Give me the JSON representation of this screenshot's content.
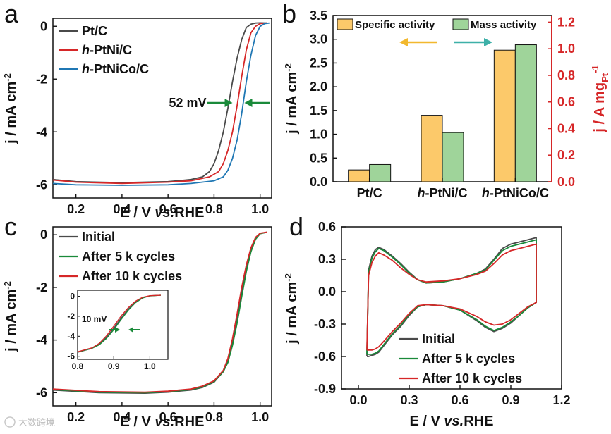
{
  "panel_labels": [
    "a",
    "b",
    "c",
    "d"
  ],
  "watermark": "大数跨境",
  "chart_data": [
    {
      "panel": "a",
      "type": "line",
      "xlabel": "E / V vs.RHE",
      "ylabel": "j / mA cm-2",
      "xlim": [
        0.1,
        1.05
      ],
      "ylim": [
        -6.5,
        0.3
      ],
      "xticks": [
        0.2,
        0.4,
        0.6,
        0.8,
        1.0
      ],
      "yticks": [
        0,
        -2,
        -4,
        -6
      ],
      "x_tick_labels": [
        "0.2",
        "0.4",
        "0.6",
        "0.8",
        "1.0"
      ],
      "y_tick_labels": [
        "0",
        "-2",
        "-4",
        "-6"
      ],
      "series": [
        {
          "name": "Pt/C",
          "legend_prefix": "",
          "legend_rest": "Pt/C",
          "color": "#4a4a4a",
          "x": [
            0.1,
            0.2,
            0.4,
            0.6,
            0.7,
            0.75,
            0.78,
            0.8,
            0.82,
            0.84,
            0.86,
            0.88,
            0.9,
            0.92,
            0.94,
            0.96,
            0.98,
            1.0,
            1.03
          ],
          "y": [
            -5.8,
            -5.88,
            -5.92,
            -5.88,
            -5.8,
            -5.7,
            -5.5,
            -5.2,
            -4.7,
            -4.0,
            -3.1,
            -2.1,
            -1.2,
            -0.5,
            -0.05,
            0.08,
            0.12,
            0.13,
            0.12
          ]
        },
        {
          "name": "h-PtNi/C",
          "legend_prefix": "h",
          "legend_rest": "-PtNi/C",
          "color": "#d62728",
          "x": [
            0.1,
            0.2,
            0.4,
            0.6,
            0.7,
            0.78,
            0.82,
            0.84,
            0.86,
            0.88,
            0.9,
            0.92,
            0.94,
            0.96,
            0.98,
            1.0,
            1.03
          ],
          "y": [
            -5.82,
            -5.9,
            -5.95,
            -5.9,
            -5.85,
            -5.7,
            -5.5,
            -5.2,
            -4.7,
            -4.0,
            -3.0,
            -1.9,
            -0.9,
            -0.25,
            0.0,
            0.1,
            0.12
          ]
        },
        {
          "name": "h-PtNiCo/C",
          "legend_prefix": "h",
          "legend_rest": "-PtNiCo/C",
          "color": "#1f77b4",
          "x": [
            0.1,
            0.2,
            0.4,
            0.6,
            0.7,
            0.8,
            0.84,
            0.86,
            0.88,
            0.9,
            0.92,
            0.94,
            0.96,
            0.98,
            1.0,
            1.02,
            1.04
          ],
          "y": [
            -5.95,
            -6.0,
            -6.02,
            -6.0,
            -5.95,
            -5.85,
            -5.7,
            -5.45,
            -5.0,
            -4.3,
            -3.3,
            -2.1,
            -1.1,
            -0.35,
            0.0,
            0.1,
            0.12
          ]
        }
      ],
      "annotation": {
        "text": "52 mV",
        "x1": 0.88,
        "x2": 0.932,
        "y": -2.9,
        "color": "#1a8a3a"
      }
    },
    {
      "panel": "b",
      "type": "bar",
      "categories": [
        "Pt/C",
        "h-PtNi/C",
        "h-PtNiCo/C"
      ],
      "category_labels": [
        {
          "prefix": "",
          "rest": "Pt/C"
        },
        {
          "prefix": "h",
          "rest": "-PtNi/C"
        },
        {
          "prefix": "h",
          "rest": "-PtNiCo/C"
        }
      ],
      "ylabel_left": "j / mA cm-2",
      "ylabel_right": "j / A mgPt-1",
      "ylim_left": [
        0,
        3.5
      ],
      "ylim_right": [
        0,
        1.25
      ],
      "yticks_left": [
        0.0,
        0.5,
        1.0,
        1.5,
        2.0,
        2.5,
        3.0,
        3.5
      ],
      "yticks_right": [
        0.0,
        0.2,
        0.4,
        0.6,
        0.8,
        1.0,
        1.2
      ],
      "y_tick_labels_left": [
        "0.0",
        "0.5",
        "1.0",
        "1.5",
        "2.0",
        "2.5",
        "3.0",
        "3.5"
      ],
      "y_tick_labels_right": [
        "0.0",
        "0.2",
        "0.4",
        "0.6",
        "0.8",
        "1.0",
        "1.2"
      ],
      "series": [
        {
          "name": "Specific activity",
          "axis": "left",
          "color": "#fcc96a",
          "values": [
            0.25,
            1.4,
            2.77
          ]
        },
        {
          "name": "Mass activity",
          "axis": "right",
          "color": "#9fd49a",
          "values": [
            0.13,
            0.37,
            1.03
          ]
        }
      ],
      "right_axis_color": "#d62728"
    },
    {
      "panel": "c",
      "type": "line",
      "xlabel": "E / V vs.RHE",
      "ylabel": "j / mA cm-2",
      "xlim": [
        0.1,
        1.05
      ],
      "ylim": [
        -6.5,
        0.3
      ],
      "xticks": [
        0.2,
        0.4,
        0.6,
        0.8,
        1.0
      ],
      "yticks": [
        0,
        -2,
        -4,
        -6
      ],
      "x_tick_labels": [
        "0.2",
        "0.4",
        "0.6",
        "0.8",
        "1.0"
      ],
      "y_tick_labels": [
        "0",
        "-2",
        "-4",
        "-6"
      ],
      "series": [
        {
          "name": "Initial",
          "color": "#4a4a4a",
          "x": [
            0.1,
            0.3,
            0.5,
            0.6,
            0.7,
            0.75,
            0.8,
            0.84,
            0.86,
            0.88,
            0.9,
            0.92,
            0.94,
            0.96,
            0.98,
            1.0,
            1.03
          ],
          "y": [
            -5.9,
            -6.0,
            -6.02,
            -5.98,
            -5.9,
            -5.8,
            -5.6,
            -5.2,
            -4.8,
            -4.1,
            -3.2,
            -2.2,
            -1.3,
            -0.6,
            -0.15,
            0.05,
            0.1
          ]
        },
        {
          "name": "After 5 k cycles",
          "color": "#1a8a3a",
          "x": [
            0.1,
            0.3,
            0.5,
            0.6,
            0.7,
            0.75,
            0.8,
            0.84,
            0.86,
            0.88,
            0.9,
            0.92,
            0.94,
            0.96,
            0.98,
            1.0,
            1.03
          ],
          "y": [
            -5.88,
            -5.98,
            -6.0,
            -5.96,
            -5.88,
            -5.78,
            -5.58,
            -5.2,
            -4.85,
            -4.2,
            -3.35,
            -2.35,
            -1.4,
            -0.65,
            -0.17,
            0.04,
            0.1
          ]
        },
        {
          "name": "After 10 k cycles",
          "color": "#d62728",
          "x": [
            0.1,
            0.3,
            0.5,
            0.6,
            0.7,
            0.75,
            0.8,
            0.84,
            0.86,
            0.88,
            0.9,
            0.92,
            0.94,
            0.96,
            0.98,
            1.0,
            1.03
          ],
          "y": [
            -5.86,
            -5.96,
            -5.98,
            -5.94,
            -5.86,
            -5.75,
            -5.55,
            -5.15,
            -4.7,
            -3.95,
            -3.0,
            -2.0,
            -1.15,
            -0.5,
            -0.1,
            0.06,
            0.1
          ]
        }
      ],
      "inset": {
        "xlim": [
          0.8,
          1.05
        ],
        "ylim": [
          -6.3,
          0.6
        ],
        "xticks": [
          0.8,
          0.9,
          1.0
        ],
        "yticks": [
          0,
          -2,
          -4,
          -6
        ],
        "x_tick_labels": [
          "0.8",
          "0.9",
          "1.0"
        ],
        "y_tick_labels": [
          "0",
          "-2",
          "-4",
          "-6"
        ],
        "annotation": {
          "text": "10 mV",
          "x1": 0.905,
          "x2": 0.915,
          "y": -3.0,
          "color": "#1a8a3a"
        }
      }
    },
    {
      "panel": "d",
      "type": "line",
      "xlabel": "E / V vs.RHE",
      "ylabel": "j / mA cm-2",
      "xlim": [
        -0.1,
        1.2
      ],
      "ylim": [
        -0.9,
        0.6
      ],
      "xticks": [
        0.0,
        0.3,
        0.6,
        0.9,
        1.2
      ],
      "yticks": [
        0.6,
        0.3,
        0.0,
        -0.3,
        -0.6,
        -0.9
      ],
      "x_tick_labels": [
        "0.0",
        "0.3",
        "0.6",
        "0.9",
        "1.2"
      ],
      "y_tick_labels": [
        "0.6",
        "0.3",
        "0.0",
        "-0.3",
        "-0.6",
        "-0.9"
      ],
      "series": [
        {
          "name": "Initial",
          "color": "#4a4a4a",
          "x": [
            0.05,
            0.06,
            0.08,
            0.1,
            0.12,
            0.15,
            0.2,
            0.25,
            0.3,
            0.35,
            0.4,
            0.5,
            0.6,
            0.7,
            0.75,
            0.8,
            0.85,
            0.9,
            0.95,
            1.0,
            1.05,
            1.05,
            1.0,
            0.95,
            0.9,
            0.85,
            0.8,
            0.75,
            0.7,
            0.6,
            0.5,
            0.4,
            0.35,
            0.3,
            0.25,
            0.2,
            0.15,
            0.12,
            0.1,
            0.08,
            0.06,
            0.05
          ],
          "y": [
            -0.6,
            0.2,
            0.33,
            0.39,
            0.41,
            0.39,
            0.33,
            0.26,
            0.18,
            0.11,
            0.08,
            0.09,
            0.12,
            0.17,
            0.21,
            0.3,
            0.4,
            0.44,
            0.46,
            0.48,
            0.5,
            -0.1,
            -0.15,
            -0.22,
            -0.29,
            -0.34,
            -0.37,
            -0.33,
            -0.27,
            -0.17,
            -0.13,
            -0.12,
            -0.14,
            -0.22,
            -0.32,
            -0.4,
            -0.5,
            -0.56,
            -0.58,
            -0.59,
            -0.6,
            -0.6
          ]
        },
        {
          "name": "After 5 k cycles",
          "color": "#1a8a3a",
          "x": [
            0.05,
            0.06,
            0.08,
            0.1,
            0.12,
            0.15,
            0.2,
            0.25,
            0.3,
            0.35,
            0.4,
            0.5,
            0.6,
            0.7,
            0.75,
            0.8,
            0.85,
            0.9,
            0.95,
            1.0,
            1.05,
            1.05,
            1.0,
            0.95,
            0.9,
            0.85,
            0.8,
            0.75,
            0.7,
            0.6,
            0.5,
            0.4,
            0.35,
            0.3,
            0.25,
            0.2,
            0.15,
            0.12,
            0.1,
            0.08,
            0.06,
            0.05
          ],
          "y": [
            -0.58,
            0.18,
            0.31,
            0.37,
            0.4,
            0.38,
            0.32,
            0.25,
            0.17,
            0.11,
            0.08,
            0.09,
            0.12,
            0.17,
            0.2,
            0.29,
            0.38,
            0.42,
            0.44,
            0.46,
            0.48,
            -0.1,
            -0.15,
            -0.22,
            -0.28,
            -0.33,
            -0.36,
            -0.32,
            -0.26,
            -0.17,
            -0.13,
            -0.12,
            -0.14,
            -0.21,
            -0.31,
            -0.39,
            -0.49,
            -0.55,
            -0.57,
            -0.58,
            -0.58,
            -0.58
          ]
        },
        {
          "name": "After 10 k cycles",
          "color": "#d62728",
          "x": [
            0.05,
            0.06,
            0.08,
            0.1,
            0.12,
            0.15,
            0.2,
            0.25,
            0.3,
            0.35,
            0.4,
            0.5,
            0.6,
            0.7,
            0.75,
            0.8,
            0.85,
            0.9,
            0.95,
            1.0,
            1.05,
            1.05,
            1.0,
            0.95,
            0.9,
            0.85,
            0.8,
            0.75,
            0.7,
            0.6,
            0.5,
            0.4,
            0.35,
            0.3,
            0.25,
            0.2,
            0.15,
            0.12,
            0.1,
            0.08,
            0.06,
            0.05
          ],
          "y": [
            -0.54,
            0.15,
            0.27,
            0.33,
            0.36,
            0.34,
            0.29,
            0.22,
            0.16,
            0.11,
            0.09,
            0.1,
            0.12,
            0.16,
            0.19,
            0.26,
            0.34,
            0.38,
            0.4,
            0.42,
            0.44,
            -0.1,
            -0.14,
            -0.2,
            -0.26,
            -0.3,
            -0.31,
            -0.28,
            -0.23,
            -0.16,
            -0.13,
            -0.12,
            -0.13,
            -0.2,
            -0.29,
            -0.37,
            -0.46,
            -0.51,
            -0.53,
            -0.54,
            -0.54,
            -0.54
          ]
        }
      ]
    }
  ]
}
